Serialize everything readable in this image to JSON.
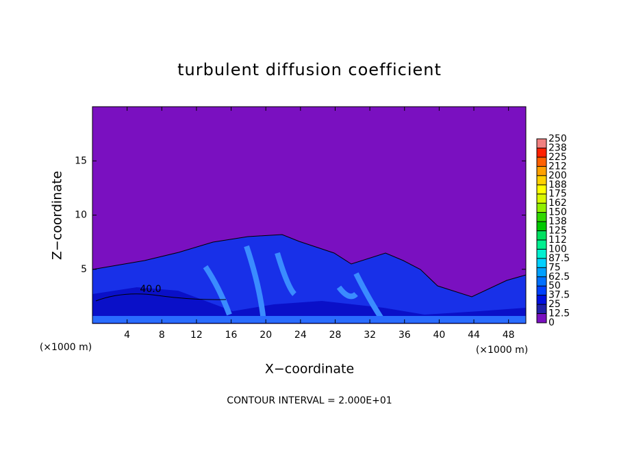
{
  "chart_data": {
    "type": "contour",
    "title": "turbulent diffusion coefficient",
    "x_label": "X−coordinate",
    "y_label": "Z−coordinate",
    "x_unit_left": "(×1000 m)",
    "x_unit_right": "(×1000 m)",
    "footer": "CONTOUR INTERVAL = 2.000E+01",
    "contour_label": "40.0",
    "xlim": [
      0,
      50
    ],
    "xticks": [
      4,
      8,
      12,
      16,
      20,
      24,
      28,
      32,
      36,
      40,
      44,
      48
    ],
    "ylim": [
      0,
      20
    ],
    "yticks": [
      5,
      10,
      15
    ],
    "colorbar_ticks": [
      0,
      12.5,
      25,
      37.5,
      50,
      62.5,
      75,
      87.5,
      100,
      {
        "value": 112.5,
        "label": "112"
      },
      125,
      {
        "value": 137.5,
        "label": "138"
      },
      150,
      {
        "value": 162.5,
        "label": "162"
      },
      175,
      {
        "value": 187.5,
        "label": "188"
      },
      200,
      {
        "value": 212.5,
        "label": "212"
      },
      225,
      {
        "value": 237.5,
        "label": "238"
      },
      250
    ],
    "colorbar_colors": [
      "#7a10c0",
      "#2020a8",
      "#0010e0",
      "#0040ff",
      "#0070ff",
      "#00a0ff",
      "#00d0ff",
      "#00f0d0",
      "#00f090",
      "#00e060",
      "#00c800",
      "#30d800",
      "#90f000",
      "#d8f800",
      "#ffff00",
      "#ffd000",
      "#ffa000",
      "#ff6000",
      "#ff2000",
      "#f08080"
    ]
  }
}
